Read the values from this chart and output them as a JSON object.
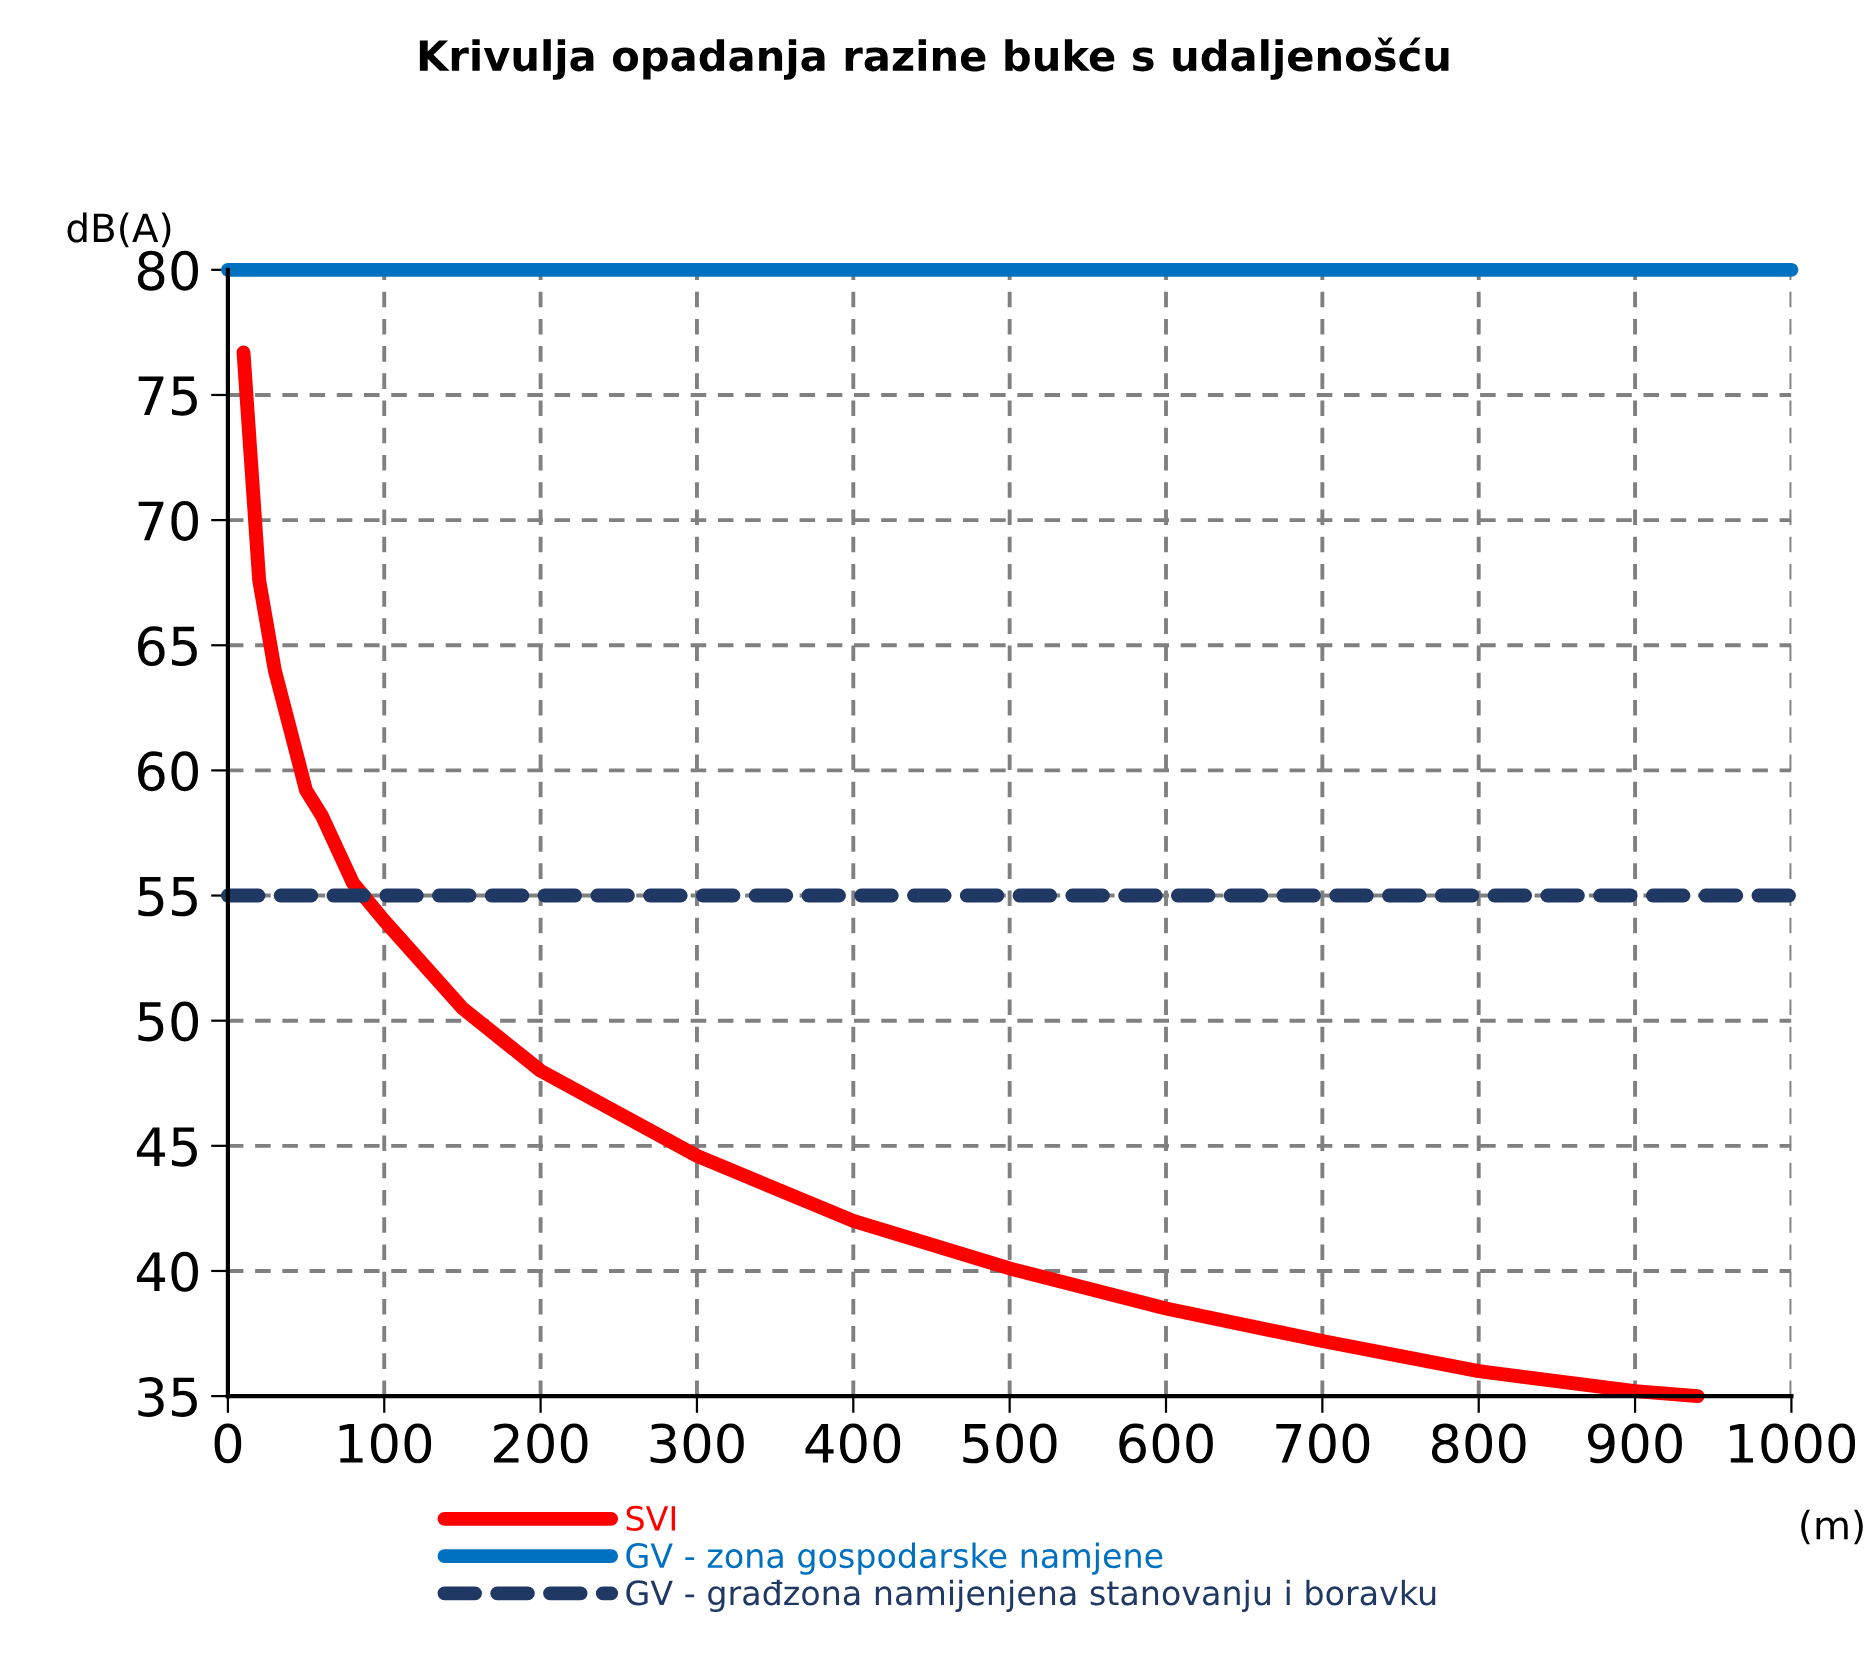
{
  "chart_data": {
    "type": "line",
    "title": "Krivulja opadanja razine buke s udaljenošću",
    "xlabel": "(m)",
    "ylabel": "dB(A)",
    "xlim": [
      0,
      1000
    ],
    "xticks": [
      0,
      100,
      200,
      300,
      400,
      500,
      600,
      700,
      800,
      900,
      1000
    ],
    "ylim": [
      35,
      80
    ],
    "yticks": [
      35,
      40,
      45,
      50,
      55,
      60,
      65,
      70,
      75,
      80
    ],
    "grid": true,
    "legend": "bottom",
    "series": [
      {
        "name": "SVI",
        "color": "#ff0000",
        "x": [
          10,
          20,
          30,
          50,
          60,
          80,
          100,
          150,
          200,
          300,
          400,
          500,
          600,
          700,
          800,
          900,
          940
        ],
        "values": [
          76.7,
          67.6,
          64,
          59.2,
          58.2,
          55.5,
          54,
          50.5,
          48,
          44.6,
          42,
          40.1,
          38.5,
          37.2,
          36,
          35.2,
          35
        ]
      },
      {
        "name": "GV - zona gospodarske namjene",
        "color": "#0070c0",
        "x": [
          0,
          1000
        ],
        "values": [
          80,
          80
        ]
      },
      {
        "name": "GV - građzona namijenjena stanovanju i boravku",
        "color": "#1f3864",
        "x": [
          0,
          1000
        ],
        "values": [
          55,
          55
        ],
        "line_style": "dashed"
      }
    ]
  }
}
